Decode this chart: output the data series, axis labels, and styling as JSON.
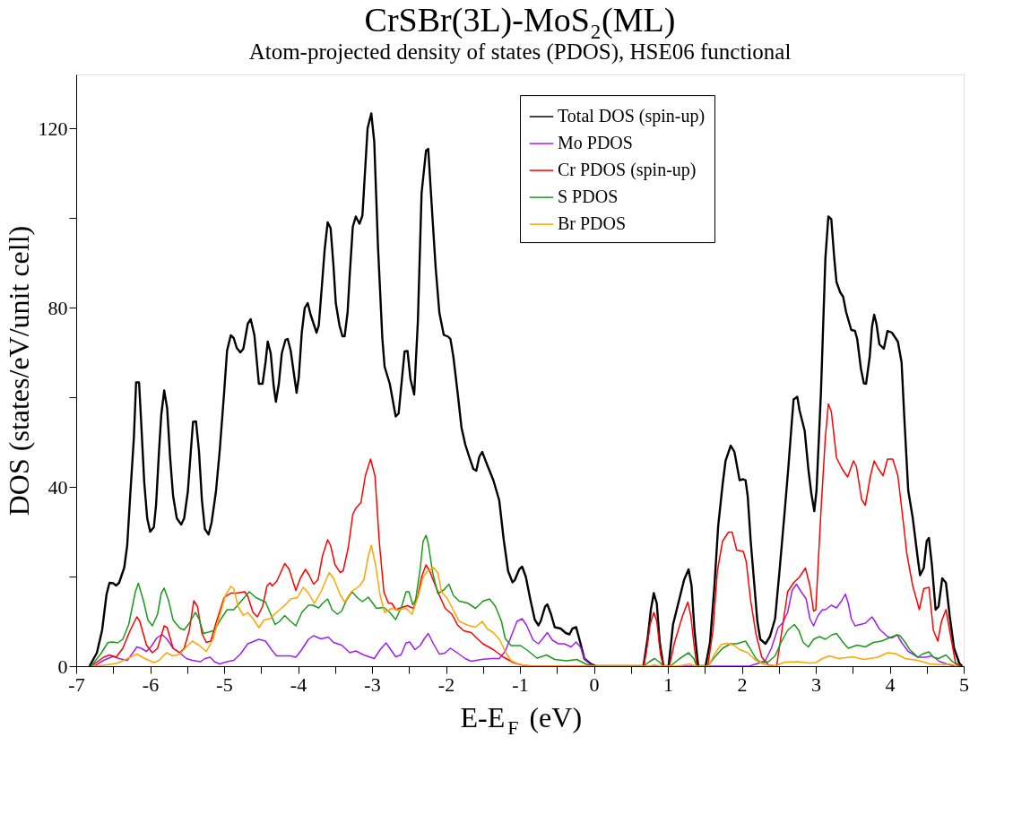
{
  "chart_data": {
    "type": "line",
    "title": "CrSBr(3L)-MoS₂(ML)",
    "subtitle": "Atom-projected density of states (PDOS), HSE06 functional",
    "xlabel": "E-E$_{F}$ (eV)",
    "ylabel": "DOS (states/eV/unit cell)",
    "xlim": [
      -7,
      5
    ],
    "xticks": [
      -7,
      {
        "value": -6.5,
        "label": null
      },
      -6,
      {
        "value": -5.5,
        "label": null
      },
      -5,
      {
        "value": -4.5,
        "label": null
      },
      -4,
      {
        "value": -3.5,
        "label": null
      },
      -3,
      {
        "value": -2.5,
        "label": null
      },
      -2,
      {
        "value": -1.5,
        "label": null
      },
      -1,
      {
        "value": -0.5,
        "label": null
      },
      0,
      {
        "value": 0.5,
        "label": null
      },
      1,
      {
        "value": 1.5,
        "label": null
      },
      2,
      {
        "value": 2.5,
        "label": null
      },
      3,
      {
        "value": 3.5,
        "label": null
      },
      4,
      {
        "value": 4.5,
        "label": null
      },
      5
    ],
    "ylim": [
      0,
      132
    ],
    "yticks": [
      0,
      {
        "value": 20,
        "label": null
      },
      40,
      {
        "value": 60,
        "label": null
      },
      80,
      {
        "value": 100,
        "label": null
      },
      120
    ],
    "grid": false,
    "legend": "top right",
    "line_style": "solid",
    "marker": "none",
    "series": [
      {
        "name": "Total DOS (spin-up)",
        "color": "#000000",
        "x": [
          -6.82,
          -6.72,
          -6.65,
          -6.59,
          -6.55,
          -6.5,
          -6.46,
          -6.42,
          -6.35,
          -6.31,
          -6.27,
          -6.22,
          -6.19,
          -6.15,
          -6.12,
          -6.08,
          -6.04,
          -6.0,
          -5.95,
          -5.92,
          -5.88,
          -5.85,
          -5.81,
          -5.77,
          -5.73,
          -5.69,
          -5.64,
          -5.58,
          -5.54,
          -5.49,
          -5.45,
          -5.42,
          -5.38,
          -5.34,
          -5.3,
          -5.26,
          -5.21,
          -5.17,
          -5.11,
          -5.06,
          -5.0,
          -4.96,
          -4.91,
          -4.87,
          -4.83,
          -4.78,
          -4.74,
          -4.68,
          -4.64,
          -4.59,
          -4.53,
          -4.48,
          -4.44,
          -4.41,
          -4.37,
          -4.33,
          -4.3,
          -4.26,
          -4.22,
          -4.17,
          -4.14,
          -4.1,
          -4.05,
          -4.02,
          -3.99,
          -3.95,
          -3.91,
          -3.87,
          -3.83,
          -3.75,
          -3.72,
          -3.68,
          -3.64,
          -3.6,
          -3.56,
          -3.52,
          -3.49,
          -3.44,
          -3.4,
          -3.37,
          -3.33,
          -3.3,
          -3.26,
          -3.22,
          -3.17,
          -3.13,
          -3.06,
          -3.01,
          -2.97,
          -2.92,
          -2.86,
          -2.83,
          -2.76,
          -2.68,
          -2.64,
          -2.56,
          -2.52,
          -2.48,
          -2.43,
          -2.38,
          -2.33,
          -2.27,
          -2.24,
          -2.19,
          -2.14,
          -2.09,
          -2.03,
          -1.97,
          -1.94,
          -1.9,
          -1.84,
          -1.79,
          -1.74,
          -1.69,
          -1.63,
          -1.59,
          -1.55,
          -1.51,
          -1.45,
          -1.36,
          -1.28,
          -1.22,
          -1.16,
          -1.1,
          -1.07,
          -1.01,
          -0.97,
          -0.92,
          -0.86,
          -0.8,
          -0.75,
          -0.72,
          -0.66,
          -0.63,
          -0.58,
          -0.53,
          -0.45,
          -0.38,
          -0.33,
          -0.29,
          -0.24,
          -0.18,
          -0.13,
          -0.05,
          0.03,
          0.67,
          0.73,
          0.77,
          0.81,
          0.85,
          0.89,
          0.94,
          1.01,
          1.07,
          1.16,
          1.22,
          1.28,
          1.32,
          1.36,
          1.41,
          1.51,
          1.57,
          1.63,
          1.68,
          1.74,
          1.78,
          1.85,
          1.9,
          1.97,
          2.02,
          2.05,
          2.08,
          2.12,
          2.17,
          2.21,
          2.25,
          2.32,
          2.38,
          2.45,
          2.51,
          2.58,
          2.63,
          2.67,
          2.7,
          2.75,
          2.78,
          2.85,
          2.9,
          2.94,
          2.98,
          3.01,
          3.07,
          3.13,
          3.17,
          3.21,
          3.25,
          3.28,
          3.33,
          3.37,
          3.41,
          3.48,
          3.53,
          3.56,
          3.61,
          3.65,
          3.68,
          3.73,
          3.76,
          3.79,
          3.82,
          3.86,
          3.92,
          3.97,
          4.03,
          4.07,
          4.11,
          4.16,
          4.2,
          4.25,
          4.31,
          4.38,
          4.41,
          4.46,
          4.5,
          4.53,
          4.57,
          4.62,
          4.66,
          4.71,
          4.76,
          4.81,
          4.87,
          4.94,
          4.98
        ],
        "values": [
          0,
          3,
          8,
          16,
          18.6,
          18.5,
          18,
          18.6,
          22,
          27,
          38,
          51,
          63.3,
          63.3,
          54,
          41,
          33,
          30,
          31,
          36,
          48,
          56,
          61.5,
          57.5,
          46.5,
          38,
          33,
          31.6,
          33,
          39,
          48,
          54.5,
          54.6,
          48,
          37,
          30.6,
          29.4,
          32,
          39,
          48,
          61,
          70.4,
          73.8,
          73.2,
          71,
          70,
          70.8,
          76.4,
          77.4,
          73.8,
          63,
          63,
          67.8,
          72.4,
          69.8,
          62.5,
          59,
          63,
          69.8,
          72.8,
          73,
          70.4,
          64.5,
          61,
          64.5,
          74.4,
          79.9,
          81,
          78.4,
          74.4,
          76,
          84.4,
          93,
          99,
          97.7,
          89,
          81,
          76,
          73.6,
          73.6,
          79,
          87.7,
          98,
          100.3,
          98.7,
          100.5,
          120,
          123.3,
          117,
          93.8,
          73,
          66.8,
          63,
          55.7,
          56.4,
          70.2,
          70.3,
          64,
          60.6,
          77,
          105.5,
          115,
          115.4,
          102,
          89,
          78.9,
          73.9,
          73.5,
          73,
          69,
          60.6,
          53.2,
          49.5,
          46.9,
          44,
          43.6,
          46.7,
          47.8,
          45.2,
          41.5,
          37,
          28.3,
          21.2,
          18.7,
          19.2,
          21.6,
          22.2,
          19.9,
          14.9,
          10.4,
          9.1,
          10,
          13.3,
          13.8,
          11.6,
          8.7,
          8.4,
          7.4,
          7.1,
          8.4,
          8.7,
          5,
          1.7,
          0.6,
          0,
          0,
          6.6,
          12.6,
          16.3,
          14,
          5.3,
          0,
          0,
          9.3,
          15.3,
          19.3,
          21.6,
          18,
          8,
          0,
          0,
          5.3,
          18,
          31.2,
          40.5,
          45.8,
          49.2,
          47.8,
          41.5,
          41.7,
          41.5,
          37.9,
          27.9,
          18,
          10,
          6,
          5,
          6.6,
          10.6,
          21.3,
          34.6,
          44.5,
          53.2,
          59.5,
          60.1,
          57.1,
          52.5,
          43.9,
          38.5,
          34.6,
          39.2,
          61.1,
          91,
          100.3,
          99.7,
          91,
          85.7,
          83.4,
          82.4,
          79,
          75,
          74.8,
          73,
          66.4,
          63.1,
          63,
          69.1,
          75.7,
          78.4,
          76.4,
          71.8,
          70.8,
          74.8,
          74.4,
          73.4,
          72.4,
          67.8,
          54.5,
          39.2,
          33.2,
          23.9,
          20.3,
          21.9,
          27.9,
          28.6,
          22.6,
          12.6,
          13.3,
          19.6,
          18.6,
          11.3,
          4,
          0.7,
          0
        ]
      },
      {
        "name": "Mo PDOS",
        "color": "#a020f0",
        "x": [
          -6.76,
          -6.63,
          -6.5,
          -6.42,
          -6.31,
          -6.22,
          -6.18,
          -6.12,
          -6.05,
          -5.99,
          -5.91,
          -5.84,
          -5.77,
          -5.69,
          -5.6,
          -5.51,
          -5.43,
          -5.32,
          -5.26,
          -5.19,
          -5.13,
          -5.06,
          -4.96,
          -4.87,
          -4.78,
          -4.68,
          -4.53,
          -4.44,
          -4.36,
          -4.29,
          -4.2,
          -4.1,
          -4.03,
          -3.95,
          -3.86,
          -3.79,
          -3.69,
          -3.59,
          -3.52,
          -3.41,
          -3.3,
          -3.22,
          -3.11,
          -2.97,
          -2.89,
          -2.81,
          -2.73,
          -2.68,
          -2.61,
          -2.54,
          -2.49,
          -2.42,
          -2.35,
          -2.29,
          -2.24,
          -2.17,
          -2.09,
          -2.02,
          -1.94,
          -1.84,
          -1.74,
          -1.66,
          -1.52,
          -1.39,
          -1.28,
          -1.2,
          -1.12,
          -1.04,
          -0.97,
          -0.91,
          -0.82,
          -0.75,
          -0.69,
          -0.63,
          -0.56,
          -0.48,
          -0.4,
          -0.31,
          -0.24,
          -0.18,
          -0.13,
          -0.05,
          0.03,
          2.1,
          2.23,
          2.32,
          2.4,
          2.49,
          2.55,
          2.62,
          2.68,
          2.74,
          2.79,
          2.87,
          2.92,
          2.97,
          3.03,
          3.09,
          3.13,
          3.21,
          3.28,
          3.35,
          3.4,
          3.44,
          3.48,
          3.53,
          3.6,
          3.67,
          3.76,
          3.8,
          3.86,
          3.97,
          4.03,
          4.1,
          4.16,
          4.25,
          4.38,
          4.49,
          4.57,
          4.68,
          4.81,
          4.89
        ],
        "values": [
          0,
          1.3,
          2.2,
          1.7,
          1.3,
          3.3,
          4.3,
          4,
          3.3,
          4.3,
          6.3,
          7.1,
          6,
          4,
          3,
          1.7,
          1.3,
          1,
          1.7,
          2,
          1,
          0.5,
          1,
          1.3,
          2.7,
          5,
          6,
          5.6,
          3.7,
          2.3,
          2.3,
          2.3,
          2,
          3.7,
          6,
          6.8,
          6.1,
          6.5,
          5.3,
          4.7,
          3,
          3.4,
          2.5,
          1.7,
          3.7,
          5.2,
          3.3,
          2.1,
          2.5,
          5.2,
          5.4,
          3.7,
          4.6,
          6.2,
          7.3,
          5,
          2.7,
          2.9,
          4,
          2.9,
          1.7,
          1.1,
          1.5,
          1.7,
          1.7,
          3.3,
          6.6,
          10,
          10.6,
          9.1,
          5.8,
          5,
          6.2,
          7.5,
          5.8,
          5,
          5,
          4.3,
          5.4,
          4.2,
          1.7,
          0.4,
          0,
          0,
          0.7,
          1.3,
          4,
          8.6,
          9.6,
          12,
          16.9,
          18.3,
          16.9,
          15,
          10.6,
          9,
          11.3,
          12.6,
          12.6,
          13.6,
          13,
          14.6,
          16.1,
          14,
          10.6,
          9,
          9.3,
          9.6,
          11,
          10,
          8.3,
          6.6,
          6.3,
          7,
          5.3,
          3.3,
          2,
          2,
          2.3,
          1,
          0.3,
          0
        ]
      },
      {
        "name": "Cr PDOS (spin-up)",
        "color": "#ff0000",
        "x": [
          -6.8,
          -6.63,
          -6.55,
          -6.46,
          -6.37,
          -6.27,
          -6.18,
          -6.14,
          -6.05,
          -5.97,
          -5.9,
          -5.81,
          -5.77,
          -5.69,
          -5.6,
          -5.54,
          -5.47,
          -5.41,
          -5.36,
          -5.3,
          -5.24,
          -5.18,
          -5.11,
          -5.0,
          -4.91,
          -4.83,
          -4.72,
          -4.68,
          -4.61,
          -4.55,
          -4.48,
          -4.42,
          -4.38,
          -4.35,
          -4.29,
          -4.18,
          -4.12,
          -4.03,
          -3.97,
          -3.9,
          -3.85,
          -3.79,
          -3.73,
          -3.67,
          -3.6,
          -3.56,
          -3.5,
          -3.43,
          -3.39,
          -3.32,
          -3.26,
          -3.22,
          -3.15,
          -3.09,
          -3.02,
          -2.96,
          -2.9,
          -2.84,
          -2.78,
          -2.73,
          -2.68,
          -2.6,
          -2.52,
          -2.44,
          -2.38,
          -2.33,
          -2.27,
          -2.22,
          -2.17,
          -2.09,
          -2.01,
          -1.92,
          -1.84,
          -1.76,
          -1.66,
          -1.58,
          -1.5,
          -1.36,
          -1.23,
          -1.09,
          -0.96,
          -0.8,
          0.67,
          0.71,
          0.76,
          0.81,
          0.85,
          0.9,
          0.94,
          1.02,
          1.09,
          1.2,
          1.27,
          1.31,
          1.35,
          1.39,
          1.54,
          1.61,
          1.67,
          1.74,
          1.82,
          1.87,
          1.93,
          2.02,
          2.06,
          2.12,
          2.19,
          2.27,
          2.36,
          2.47,
          2.53,
          2.62,
          2.7,
          2.78,
          2.86,
          2.92,
          2.97,
          3.0,
          3.07,
          3.13,
          3.17,
          3.21,
          3.28,
          3.35,
          3.43,
          3.51,
          3.55,
          3.62,
          3.67,
          3.74,
          3.79,
          3.84,
          3.91,
          3.97,
          4.04,
          4.11,
          4.19,
          4.23,
          4.31,
          4.4,
          4.46,
          4.53,
          4.59,
          4.65,
          4.7,
          4.76,
          4.81,
          4.89,
          4.96
        ],
        "values": [
          0,
          2,
          2.5,
          2,
          4,
          8,
          11,
          10,
          4.7,
          3,
          4,
          9,
          8.6,
          4,
          3,
          4,
          8,
          14.6,
          13.3,
          7.3,
          5.3,
          5.6,
          9.6,
          15.3,
          16.3,
          16.3,
          16.6,
          15.6,
          12,
          11,
          13.3,
          17.9,
          18.6,
          17.9,
          18.9,
          22.9,
          21.6,
          16.9,
          19.6,
          21.6,
          20.3,
          18.3,
          19.3,
          24.6,
          28.2,
          26.9,
          22.6,
          20.9,
          21.3,
          26.6,
          33.9,
          35.2,
          36.5,
          42.5,
          46.2,
          42.4,
          27.4,
          16.6,
          14.1,
          14,
          12.6,
          13.1,
          13.5,
          12.9,
          15.8,
          19.9,
          22.6,
          21.2,
          19.1,
          15.8,
          12.9,
          11.6,
          9.1,
          7.9,
          7.5,
          6.2,
          5,
          3.7,
          2.1,
          0.8,
          0.2,
          0,
          0,
          3.3,
          9.3,
          12,
          10,
          2.7,
          0,
          0,
          5.3,
          11.3,
          14.3,
          11.3,
          5.3,
          0,
          0,
          8,
          21.3,
          27.9,
          29.9,
          29.9,
          25.9,
          25.6,
          23.3,
          14.6,
          7.3,
          2,
          0.3,
          0,
          6.6,
          16.6,
          18.6,
          19.9,
          21.9,
          18,
          12.3,
          12.6,
          34.6,
          51.2,
          58.5,
          56.8,
          46.5,
          44.2,
          42.2,
          45.8,
          44.5,
          37.2,
          35.9,
          42.5,
          45.8,
          44.2,
          42.5,
          46.2,
          46.2,
          42.5,
          31.2,
          25.2,
          18,
          12.6,
          17.3,
          17.6,
          8,
          5.6,
          10,
          12.6,
          8,
          0.7,
          0
        ]
      },
      {
        "name": "S PDOS",
        "color": "#1a9a1a",
        "x": [
          -6.8,
          -6.67,
          -6.57,
          -6.5,
          -6.44,
          -6.37,
          -6.29,
          -6.2,
          -6.16,
          -6.09,
          -6.03,
          -5.97,
          -5.9,
          -5.85,
          -5.81,
          -5.75,
          -5.69,
          -5.6,
          -5.54,
          -5.47,
          -5.39,
          -5.34,
          -5.28,
          -5.21,
          -5.13,
          -5.04,
          -4.96,
          -4.87,
          -4.78,
          -4.66,
          -4.57,
          -4.44,
          -4.38,
          -4.31,
          -4.25,
          -4.18,
          -4.12,
          -4.03,
          -3.95,
          -3.86,
          -3.8,
          -3.72,
          -3.67,
          -3.6,
          -3.54,
          -3.47,
          -3.41,
          -3.35,
          -3.27,
          -3.2,
          -3.13,
          -3.05,
          -2.94,
          -2.84,
          -2.76,
          -2.68,
          -2.6,
          -2.54,
          -2.5,
          -2.45,
          -2.41,
          -2.35,
          -2.31,
          -2.27,
          -2.24,
          -2.18,
          -2.11,
          -2.03,
          -1.96,
          -1.9,
          -1.82,
          -1.71,
          -1.6,
          -1.5,
          -1.41,
          -1.33,
          -1.25,
          -1.2,
          -1.12,
          -0.99,
          -0.88,
          -0.77,
          -0.64,
          -0.53,
          -0.37,
          -0.23,
          -0.1,
          0.01,
          0.67,
          0.75,
          0.82,
          0.88,
          0.94,
          1.03,
          1.16,
          1.28,
          1.35,
          1.39,
          1.54,
          1.63,
          1.74,
          1.85,
          1.93,
          1.99,
          2.05,
          2.11,
          2.19,
          2.27,
          2.36,
          2.45,
          2.53,
          2.62,
          2.71,
          2.77,
          2.83,
          2.9,
          2.97,
          3.05,
          3.13,
          3.22,
          3.28,
          3.37,
          3.44,
          3.56,
          3.67,
          3.78,
          3.89,
          3.99,
          4.1,
          4.14,
          4.21,
          4.27,
          4.38,
          4.44,
          4.53,
          4.59,
          4.66,
          4.76,
          4.85,
          4.94
        ],
        "values": [
          0,
          2.7,
          5.3,
          5.4,
          5.2,
          6,
          9.3,
          16.6,
          18.5,
          14.6,
          10.3,
          9,
          11.6,
          16.3,
          17.4,
          14.6,
          10.3,
          8.5,
          8.1,
          9.6,
          12,
          10.6,
          7.3,
          7.6,
          8,
          10.6,
          12.6,
          12.6,
          14.3,
          16.6,
          15.3,
          14.3,
          12,
          9.3,
          10,
          11.3,
          10.3,
          9,
          12,
          13.6,
          13.6,
          13,
          14,
          15,
          12.6,
          11.6,
          12.3,
          14.6,
          16.6,
          15.3,
          14.4,
          15.4,
          12.9,
          13.1,
          12,
          10.4,
          13.3,
          16.6,
          16.6,
          13.7,
          14.9,
          21.6,
          27.8,
          29.2,
          27.4,
          20.8,
          16.2,
          17,
          18.3,
          15.8,
          14.5,
          14.1,
          12.9,
          14.5,
          15,
          13.3,
          10,
          6.2,
          4.6,
          4.6,
          3.3,
          1.8,
          2.5,
          1.5,
          1.2,
          1.5,
          0.4,
          0,
          0,
          1,
          1.7,
          1,
          0,
          0,
          1.7,
          3,
          1.7,
          0,
          0,
          2,
          4,
          5,
          5,
          5.3,
          5.6,
          4,
          1.7,
          0.7,
          1,
          2.3,
          5.3,
          8,
          9.3,
          8,
          5.3,
          4.3,
          6,
          6.6,
          6,
          7,
          7.3,
          5.3,
          4,
          4.7,
          4.3,
          5.3,
          5.6,
          6.3,
          7,
          6.8,
          5.3,
          3.7,
          2,
          2.7,
          3.2,
          2,
          1.7,
          2.5,
          1,
          0
        ]
      },
      {
        "name": "Br PDOS",
        "color": "#ffa500",
        "x": [
          -6.76,
          -6.59,
          -6.44,
          -6.31,
          -6.18,
          -6.07,
          -5.95,
          -5.88,
          -5.78,
          -5.69,
          -5.6,
          -5.51,
          -5.43,
          -5.34,
          -5.24,
          -5.15,
          -5.06,
          -4.98,
          -4.91,
          -4.87,
          -4.81,
          -4.74,
          -4.68,
          -4.61,
          -4.53,
          -4.46,
          -4.38,
          -4.29,
          -4.18,
          -4.1,
          -4.01,
          -3.93,
          -3.86,
          -3.78,
          -3.69,
          -3.58,
          -3.52,
          -3.43,
          -3.37,
          -3.28,
          -3.17,
          -3.11,
          -3.05,
          -3.01,
          -2.95,
          -2.89,
          -2.83,
          -2.73,
          -2.65,
          -2.54,
          -2.46,
          -2.38,
          -2.31,
          -2.25,
          -2.17,
          -2.11,
          -2.06,
          -1.98,
          -1.9,
          -1.82,
          -1.7,
          -1.6,
          -1.51,
          -1.44,
          -1.36,
          -1.27,
          -1.2,
          -1.12,
          -1.01,
          -0.85,
          0.73,
          0.82,
          0.92,
          1.16,
          1.29,
          1.39,
          1.55,
          1.63,
          1.72,
          1.8,
          1.89,
          1.97,
          2.08,
          2.19,
          2.32,
          2.45,
          2.58,
          2.75,
          2.92,
          3.0,
          3.09,
          3.18,
          3.31,
          3.5,
          3.65,
          3.84,
          3.97,
          4.08,
          4.21,
          4.38,
          4.55,
          4.72,
          4.81,
          4.92
        ],
        "values": [
          0,
          0.3,
          0.7,
          1.7,
          2.7,
          1.7,
          0.8,
          1.3,
          3,
          2.3,
          2.7,
          4.3,
          5.6,
          4.7,
          3.3,
          6,
          11.3,
          15.9,
          17.8,
          17.3,
          13.3,
          11.3,
          12,
          10.6,
          8.6,
          10.3,
          10.6,
          12,
          13.6,
          15,
          15.3,
          17.6,
          16.3,
          14,
          16.6,
          20.9,
          19.6,
          15.9,
          14.3,
          16.6,
          17.9,
          19.3,
          24.6,
          27,
          22.4,
          15.8,
          12,
          12.9,
          12.5,
          12.9,
          11.6,
          15.4,
          19.9,
          21.2,
          22,
          20.8,
          16.6,
          15,
          12.5,
          10,
          9.1,
          8.7,
          10,
          8.3,
          7.5,
          5.8,
          3.3,
          1.2,
          0.4,
          0,
          0,
          0.3,
          0,
          0.1,
          0.5,
          0,
          0,
          2.7,
          4.8,
          5.1,
          4.7,
          3.7,
          3,
          1.3,
          0.3,
          0.1,
          0.9,
          1,
          0.7,
          0.8,
          1.7,
          2.3,
          1.7,
          2.1,
          1.5,
          2,
          3,
          2.8,
          1.7,
          1.3,
          0.5,
          0.3,
          0.5,
          0
        ]
      }
    ]
  }
}
